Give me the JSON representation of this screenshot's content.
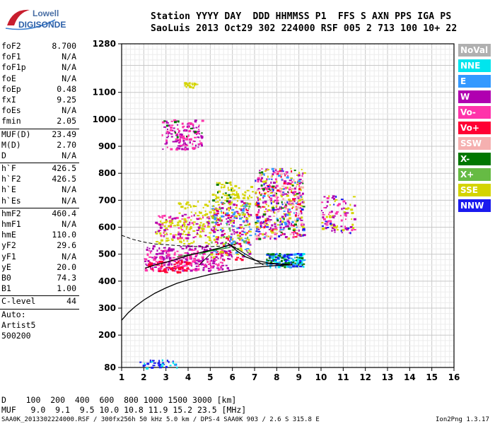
{
  "logo": {
    "line1": "Lowell",
    "line2": "DIGISONDE"
  },
  "header": {
    "line1": "Station YYYY DAY  DDD HHMMSS P1  FFS S AXN PPS IGA PS",
    "line2": "SaoLuis 2013 Oct29 302 224000 RSF 005 2 713 100 10+ 22"
  },
  "params": {
    "group1": [
      {
        "label": "foF2",
        "value": "8.700"
      },
      {
        "label": "foF1",
        "value": "N/A"
      },
      {
        "label": "foF1p",
        "value": "N/A"
      },
      {
        "label": "foE",
        "value": "N/A"
      },
      {
        "label": "foEp",
        "value": "0.48"
      },
      {
        "label": "fxI",
        "value": "9.25"
      },
      {
        "label": "foEs",
        "value": "N/A"
      },
      {
        "label": "fmin",
        "value": "2.05"
      }
    ],
    "group2": [
      {
        "label": "MUF(D)",
        "value": "23.49"
      },
      {
        "label": "M(D)",
        "value": "2.70"
      },
      {
        "label": "D",
        "value": "N/A"
      }
    ],
    "group3": [
      {
        "label": "h`F",
        "value": "426.5"
      },
      {
        "label": "h`F2",
        "value": "426.5"
      },
      {
        "label": "h`E",
        "value": "N/A"
      },
      {
        "label": "h`Es",
        "value": "N/A"
      }
    ],
    "group4": [
      {
        "label": "hmF2",
        "value": "460.4"
      },
      {
        "label": "hmF1",
        "value": "N/A"
      },
      {
        "label": "hmE",
        "value": "110.0"
      },
      {
        "label": "yF2",
        "value": "29.6"
      },
      {
        "label": "yF1",
        "value": "N/A"
      },
      {
        "label": "yE",
        "value": "20.0"
      },
      {
        "label": "B0",
        "value": "74.3"
      },
      {
        "label": "B1",
        "value": "1.00"
      }
    ],
    "group5": [
      {
        "label": "C-level",
        "value": "44"
      }
    ],
    "autoscale": [
      "Auto:",
      "Artist5",
      "500200"
    ]
  },
  "legend": [
    {
      "label": "NoVal",
      "bg": "#b0b0b0",
      "fg": "#ffffff"
    },
    {
      "label": "NNE",
      "bg": "#00e5ee",
      "fg": "#ffffff"
    },
    {
      "label": "E",
      "bg": "#3399ff",
      "fg": "#ffffff"
    },
    {
      "label": "W",
      "bg": "#b000b0",
      "fg": "#ffffff"
    },
    {
      "label": "Vo-",
      "bg": "#ff33aa",
      "fg": "#ffffff"
    },
    {
      "label": "Vo+",
      "bg": "#ff0033",
      "fg": "#ffffff"
    },
    {
      "label": "SSW",
      "bg": "#f5b0b0",
      "fg": "#ffffff"
    },
    {
      "label": "X-",
      "bg": "#007700",
      "fg": "#ffffff"
    },
    {
      "label": "X+",
      "bg": "#66bb44",
      "fg": "#ffffff"
    },
    {
      "label": "SSE",
      "bg": "#d4d400",
      "fg": "#ffffff"
    },
    {
      "label": "NNW",
      "bg": "#1a1aee",
      "fg": "#ffffff"
    }
  ],
  "chart_data": {
    "type": "scatter",
    "title": "",
    "xlabel": "",
    "ylabel": "",
    "xlim": [
      1,
      16
    ],
    "ylim": [
      80,
      1280
    ],
    "x_ticks": [
      1,
      2,
      3,
      4,
      5,
      6,
      7,
      8,
      9,
      10,
      11,
      12,
      13,
      14,
      15,
      16
    ],
    "y_ticks": [
      80,
      200,
      300,
      400,
      500,
      600,
      700,
      800,
      900,
      1000,
      1100,
      1280
    ],
    "grid": true,
    "profile_curve": [
      [
        1.0,
        255
      ],
      [
        1.3,
        283
      ],
      [
        1.6,
        305
      ],
      [
        2.0,
        330
      ],
      [
        2.5,
        355
      ],
      [
        3.0,
        375
      ],
      [
        3.5,
        392
      ],
      [
        4.0,
        405
      ],
      [
        4.5,
        415
      ],
      [
        5.0,
        425
      ],
      [
        5.5,
        433
      ],
      [
        6.0,
        440
      ],
      [
        6.5,
        446
      ],
      [
        7.0,
        451
      ],
      [
        7.5,
        455
      ],
      [
        8.0,
        458
      ],
      [
        8.5,
        460
      ],
      [
        8.7,
        460.4
      ]
    ],
    "trace_curve": [
      [
        2.05,
        448
      ],
      [
        2.5,
        460
      ],
      [
        3.0,
        470
      ],
      [
        3.5,
        482
      ],
      [
        4.0,
        495
      ],
      [
        4.5,
        505
      ],
      [
        5.0,
        515
      ],
      [
        5.5,
        525
      ],
      [
        5.9,
        535
      ],
      [
        6.2,
        512
      ],
      [
        6.6,
        490
      ],
      [
        7.0,
        478
      ],
      [
        7.6,
        468
      ],
      [
        8.2,
        463
      ],
      [
        8.7,
        460
      ]
    ],
    "dashed_curve": [
      [
        1.0,
        570
      ],
      [
        1.5,
        555
      ],
      [
        2.0,
        545
      ],
      [
        2.5,
        538
      ],
      [
        3.0,
        535
      ],
      [
        3.5,
        532
      ],
      [
        4.0,
        530
      ],
      [
        4.5,
        528
      ],
      [
        5.0,
        528
      ],
      [
        5.5,
        530
      ]
    ],
    "clusters": [
      {
        "x": [
          2.0,
          5.9
        ],
        "y": [
          440,
          535
        ],
        "color": "#b000b0",
        "n": 190
      },
      {
        "x": [
          2.0,
          5.6
        ],
        "y": [
          440,
          520
        ],
        "color": "#ff33aa",
        "n": 130
      },
      {
        "x": [
          2.0,
          4.0
        ],
        "y": [
          435,
          480
        ],
        "color": "#ff0033",
        "n": 60
      },
      {
        "x": [
          5.0,
          6.8
        ],
        "y": [
          480,
          700
        ],
        "color": "#ff0033",
        "n": 60
      },
      {
        "x": [
          5.0,
          6.8
        ],
        "y": [
          490,
          700
        ],
        "color": "#b000b0",
        "n": 90
      },
      {
        "x": [
          5.0,
          6.8
        ],
        "y": [
          490,
          700
        ],
        "color": "#d4d400",
        "n": 70
      },
      {
        "x": [
          5.0,
          6.8
        ],
        "y": [
          490,
          700
        ],
        "color": "#3399ff",
        "n": 50
      },
      {
        "x": [
          5.0,
          6.8
        ],
        "y": [
          490,
          700
        ],
        "color": "#66bb44",
        "n": 30
      },
      {
        "x": [
          2.5,
          5.0
        ],
        "y": [
          540,
          630
        ],
        "color": "#d4d400",
        "n": 100
      },
      {
        "x": [
          2.5,
          5.0
        ],
        "y": [
          560,
          650
        ],
        "color": "#ff33aa",
        "n": 40
      },
      {
        "x": [
          2.5,
          5.0
        ],
        "y": [
          560,
          650
        ],
        "color": "#b000b0",
        "n": 40
      },
      {
        "x": [
          7.0,
          9.2
        ],
        "y": [
          560,
          820
        ],
        "color": "#b000b0",
        "n": 150
      },
      {
        "x": [
          7.0,
          9.2
        ],
        "y": [
          560,
          820
        ],
        "color": "#d4d400",
        "n": 110
      },
      {
        "x": [
          7.0,
          9.2
        ],
        "y": [
          560,
          820
        ],
        "color": "#ff33aa",
        "n": 80
      },
      {
        "x": [
          7.0,
          9.2
        ],
        "y": [
          560,
          820
        ],
        "color": "#f5b0b0",
        "n": 60
      },
      {
        "x": [
          7.0,
          9.2
        ],
        "y": [
          560,
          820
        ],
        "color": "#ff0033",
        "n": 40
      },
      {
        "x": [
          7.0,
          9.2
        ],
        "y": [
          560,
          820
        ],
        "color": "#3399ff",
        "n": 40
      },
      {
        "x": [
          7.0,
          9.2
        ],
        "y": [
          560,
          820
        ],
        "color": "#007700",
        "n": 30
      },
      {
        "x": [
          7.0,
          9.2
        ],
        "y": [
          560,
          820
        ],
        "color": "#1a1aee",
        "n": 25
      },
      {
        "x": [
          7.5,
          9.2
        ],
        "y": [
          455,
          505
        ],
        "color": "#00e5ee",
        "n": 80
      },
      {
        "x": [
          7.5,
          9.2
        ],
        "y": [
          455,
          505
        ],
        "color": "#3399ff",
        "n": 60
      },
      {
        "x": [
          7.5,
          9.2
        ],
        "y": [
          455,
          505
        ],
        "color": "#007700",
        "n": 40
      },
      {
        "x": [
          7.5,
          9.2
        ],
        "y": [
          455,
          505
        ],
        "color": "#1a1aee",
        "n": 30
      },
      {
        "x": [
          10.0,
          11.5
        ],
        "y": [
          580,
          720
        ],
        "color": "#b000b0",
        "n": 40
      },
      {
        "x": [
          10.0,
          11.5
        ],
        "y": [
          580,
          720
        ],
        "color": "#d4d400",
        "n": 30
      },
      {
        "x": [
          10.0,
          11.5
        ],
        "y": [
          580,
          720
        ],
        "color": "#ff33aa",
        "n": 25
      },
      {
        "x": [
          10.0,
          11.5
        ],
        "y": [
          580,
          720
        ],
        "color": "#1a1aee",
        "n": 10
      },
      {
        "x": [
          2.8,
          4.6
        ],
        "y": [
          890,
          1000
        ],
        "color": "#b000b0",
        "n": 90
      },
      {
        "x": [
          2.8,
          4.6
        ],
        "y": [
          890,
          1000
        ],
        "color": "#ff33aa",
        "n": 60
      },
      {
        "x": [
          2.8,
          4.6
        ],
        "y": [
          890,
          1000
        ],
        "color": "#007700",
        "n": 10
      },
      {
        "x": [
          3.5,
          5.2
        ],
        "y": [
          620,
          700
        ],
        "color": "#d4d400",
        "n": 40
      },
      {
        "x": [
          5.0,
          6.0
        ],
        "y": [
          700,
          770
        ],
        "color": "#d4d400",
        "n": 30
      },
      {
        "x": [
          5.0,
          6.0
        ],
        "y": [
          700,
          770
        ],
        "color": "#007700",
        "n": 10
      },
      {
        "x": [
          6.0,
          6.9
        ],
        "y": [
          710,
          760
        ],
        "color": "#d4d400",
        "n": 25
      },
      {
        "x": [
          3.8,
          4.4
        ],
        "y": [
          1120,
          1140
        ],
        "color": "#d4d400",
        "n": 20
      },
      {
        "x": [
          1.8,
          3.5
        ],
        "y": [
          80,
          110
        ],
        "color": "#1a1aee",
        "n": 25
      },
      {
        "x": [
          1.8,
          3.5
        ],
        "y": [
          80,
          110
        ],
        "color": "#00e5ee",
        "n": 10
      }
    ],
    "segments": [
      {
        "color": "#000000",
        "x1": 4.5,
        "y1": 460,
        "x2": 5.0,
        "y2": 500
      },
      {
        "color": "#000000",
        "x1": 5.8,
        "y1": 540,
        "x2": 7.4,
        "y2": 460
      },
      {
        "color": "#000000",
        "x1": 7.0,
        "y1": 465,
        "x2": 8.5,
        "y2": 463
      },
      {
        "color": "#007700",
        "x1": 3.5,
        "y1": 490,
        "x2": 5.9,
        "y2": 525
      },
      {
        "color": "#007700",
        "x1": 4.5,
        "y1": 500,
        "x2": 6.2,
        "y2": 540
      }
    ]
  },
  "footer": {
    "d_row": "D    100  200  400  600  800 1000 1500 3000 [km]",
    "muf_row": "MUF   9.0  9.1  9.5 10.0 10.8 11.9 15.2 23.5 [MHz]",
    "file_info": "SAA0K_2013302224000.RSF / 300fx256h 50 kHz 5.0 km / DPS-4 SAA0K 903 / 2.6 S 315.8 E",
    "version": "Ion2Png 1.3.17"
  }
}
